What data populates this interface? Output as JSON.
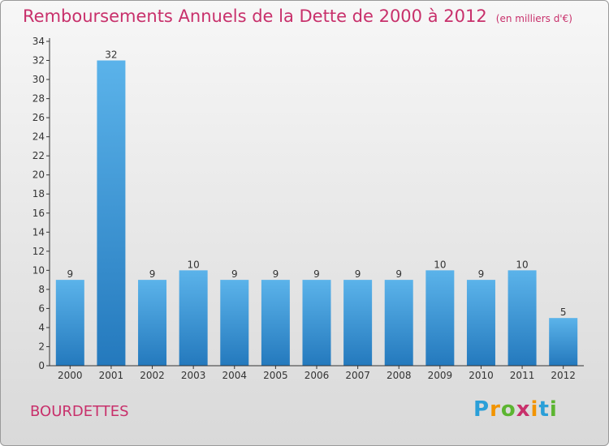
{
  "title": {
    "main": "Remboursements Annuels de la Dette de 2000 à 2012",
    "unit": "(en milliers d'€)"
  },
  "commune": "BOURDETTES",
  "logo": {
    "letters": [
      "P",
      "r",
      "o",
      "x",
      "i",
      "t",
      "i"
    ],
    "colors": [
      "#2a9fd8",
      "#f29400",
      "#5cb531",
      "#c8306b",
      "#f29400",
      "#2a9fd8",
      "#5cb531"
    ]
  },
  "colors": {
    "accent": "#c8306b",
    "bar_top": "#5bb3ea",
    "bar_bottom": "#2479bd"
  },
  "chart_data": {
    "type": "bar",
    "categories": [
      "2000",
      "2001",
      "2002",
      "2003",
      "2004",
      "2005",
      "2006",
      "2007",
      "2008",
      "2009",
      "2010",
      "2011",
      "2012"
    ],
    "values": [
      9,
      32,
      9,
      10,
      9,
      9,
      9,
      9,
      9,
      10,
      9,
      10,
      5
    ],
    "ylim": [
      0,
      34
    ],
    "yticks": [
      0,
      2,
      4,
      6,
      8,
      10,
      12,
      14,
      16,
      18,
      20,
      22,
      24,
      26,
      28,
      30,
      32,
      34
    ],
    "grid": false,
    "legend": "none"
  }
}
